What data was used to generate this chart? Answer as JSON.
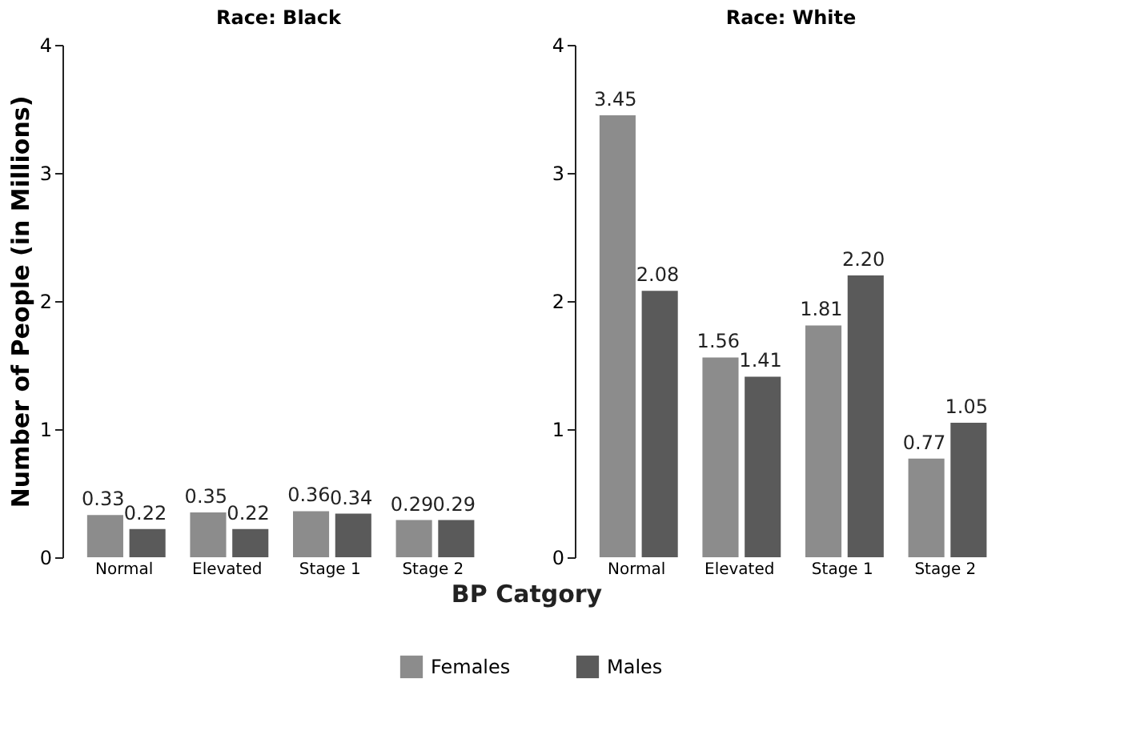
{
  "chart_data": [
    {
      "type": "bar",
      "title": "Race: Black",
      "ylabel": "Number of People (in Millions)",
      "xlabel": "BP Catgory",
      "legend": "bottom",
      "categories": [
        "Normal",
        "Elevated",
        "Stage 1",
        "Stage 2"
      ],
      "series": [
        {
          "name": "Females",
          "color": "#8c8c8c",
          "values": [
            0.33,
            0.35,
            0.36,
            0.29
          ],
          "value_labels": [
            "0.33",
            "0.35",
            "0.36",
            "0.29"
          ]
        },
        {
          "name": "Males",
          "color": "#5a5a5a",
          "values": [
            0.22,
            0.22,
            0.34,
            0.29
          ],
          "value_labels": [
            "0.22",
            "0.22",
            "0.34",
            "0.29"
          ]
        }
      ],
      "ylim": [
        0,
        4
      ],
      "yticks": [
        0,
        1,
        2,
        3,
        4
      ],
      "grid": false
    },
    {
      "type": "bar",
      "title": "Race: White",
      "categories": [
        "Normal",
        "Elevated",
        "Stage 1",
        "Stage 2"
      ],
      "series": [
        {
          "name": "Females",
          "color": "#8c8c8c",
          "values": [
            3.45,
            1.56,
            1.81,
            0.77
          ],
          "value_labels": [
            "3.45",
            "1.56",
            "1.81",
            "0.77"
          ]
        },
        {
          "name": "Males",
          "color": "#5a5a5a",
          "values": [
            2.08,
            1.41,
            2.2,
            1.05
          ],
          "value_labels": [
            "2.08",
            "1.41",
            "2.20",
            "1.05"
          ]
        }
      ],
      "ylim": [
        0,
        4
      ],
      "yticks": [
        0,
        1,
        2,
        3,
        4
      ],
      "grid": false
    }
  ]
}
